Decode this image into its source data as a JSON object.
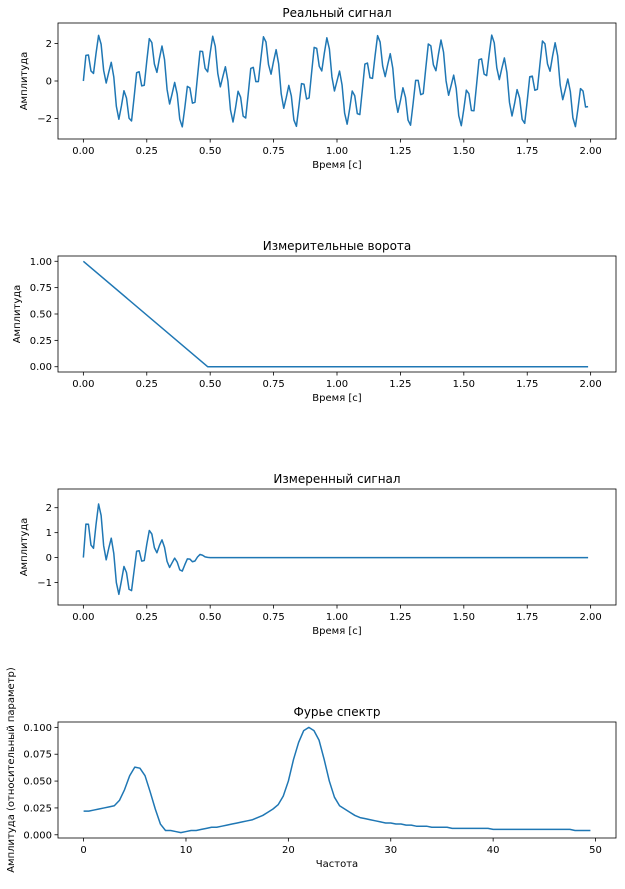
{
  "chart_data": [
    {
      "type": "line",
      "title": "Реальный сигнал",
      "xlabel": "Время [c]",
      "ylabel": "Амплитуда",
      "xlim": [
        -0.1,
        2.1
      ],
      "ylim": [
        -3.1,
        3.1
      ],
      "xticks": [
        0.0,
        0.25,
        0.5,
        0.75,
        1.0,
        1.25,
        1.5,
        1.75,
        2.0
      ],
      "xtick_labels": [
        "0.00",
        "0.25",
        "0.50",
        "0.75",
        "1.00",
        "1.25",
        "1.50",
        "1.75",
        "2.00"
      ],
      "yticks": [
        -2,
        0,
        2
      ],
      "ytick_labels": [
        "−2",
        "0",
        "2"
      ],
      "grid": false,
      "series": [
        {
          "signal_model": "sin(2*pi*20*t) + 1.5*sin(2*pi*4.5*t)",
          "t_start": 0.0,
          "t_step": 0.01,
          "count": 200,
          "envelope": "none"
        }
      ]
    },
    {
      "type": "line",
      "title": "Измерительные ворота",
      "xlabel": "Время [c]",
      "ylabel": "Амплитуда",
      "xlim": [
        -0.1,
        2.1
      ],
      "ylim": [
        -0.05,
        1.05
      ],
      "xticks": [
        0.0,
        0.25,
        0.5,
        0.75,
        1.0,
        1.25,
        1.5,
        1.75,
        2.0
      ],
      "xtick_labels": [
        "0.00",
        "0.25",
        "0.50",
        "0.75",
        "1.00",
        "1.25",
        "1.50",
        "1.75",
        "2.00"
      ],
      "yticks": [
        0.0,
        0.25,
        0.5,
        0.75,
        1.0
      ],
      "ytick_labels": [
        "0.00",
        "0.25",
        "0.50",
        "0.75",
        "1.00"
      ],
      "grid": false,
      "series": [
        {
          "x": [
            0.0,
            0.49,
            0.5,
            1.99
          ],
          "y": [
            1.0,
            0.0,
            0.0,
            0.0
          ]
        }
      ]
    },
    {
      "type": "line",
      "title": "Измеренный сигнал",
      "xlabel": "Время [c]",
      "ylabel": "Амплитуда",
      "xlim": [
        -0.1,
        2.1
      ],
      "ylim": [
        -1.9,
        2.75
      ],
      "xticks": [
        0.0,
        0.25,
        0.5,
        0.75,
        1.0,
        1.25,
        1.5,
        1.75,
        2.0
      ],
      "xtick_labels": [
        "0.00",
        "0.25",
        "0.50",
        "0.75",
        "1.00",
        "1.25",
        "1.50",
        "1.75",
        "2.00"
      ],
      "yticks": [
        -1,
        0,
        1,
        2
      ],
      "ytick_labels": [
        "−1",
        "0",
        "1",
        "2"
      ],
      "grid": false,
      "series": [
        {
          "signal_model": "(sin(2*pi*20*t) + 1.5*sin(2*pi*4.5*t)) * max(0, 1 - t/0.5)",
          "t_start": 0.0,
          "t_step": 0.01,
          "count": 200,
          "envelope": "linear-gate-0.5"
        }
      ]
    },
    {
      "type": "line",
      "title": "Фурье спектр",
      "xlabel": "Частота",
      "ylabel": "Амплитуда (относительный параметр)",
      "xlim": [
        -2.5,
        52.0
      ],
      "ylim": [
        -0.003,
        0.105
      ],
      "xticks": [
        0,
        10,
        20,
        30,
        40,
        50
      ],
      "xtick_labels": [
        "0",
        "10",
        "20",
        "30",
        "40",
        "50"
      ],
      "yticks": [
        0.0,
        0.025,
        0.05,
        0.075,
        0.1
      ],
      "ytick_labels": [
        "0.000",
        "0.025",
        "0.050",
        "0.075",
        "0.100"
      ],
      "grid": false,
      "series": [
        {
          "x": [
            0,
            0.5,
            1,
            1.5,
            2,
            2.5,
            3,
            3.5,
            4,
            4.5,
            5,
            5.5,
            6,
            6.5,
            7,
            7.5,
            8,
            8.5,
            9,
            9.5,
            10,
            10.5,
            11,
            11.5,
            12,
            12.5,
            13,
            13.5,
            14,
            14.5,
            15,
            15.5,
            16,
            16.5,
            17,
            17.5,
            18,
            18.5,
            19,
            19.5,
            20,
            20.5,
            21,
            21.5,
            22,
            22.5,
            23,
            23.5,
            24,
            24.5,
            25,
            25.5,
            26,
            26.5,
            27,
            27.5,
            28,
            28.5,
            29,
            29.5,
            30,
            30.5,
            31,
            31.5,
            32,
            32.5,
            33,
            33.5,
            34,
            34.5,
            35,
            35.5,
            36,
            36.5,
            37,
            37.5,
            38,
            38.5,
            39,
            39.5,
            40,
            40.5,
            41,
            41.5,
            42,
            42.5,
            43,
            43.5,
            44,
            44.5,
            45,
            45.5,
            46,
            46.5,
            47,
            47.5,
            48,
            48.5,
            49,
            49.5
          ],
          "y": [
            0.022,
            0.022,
            0.023,
            0.024,
            0.025,
            0.026,
            0.027,
            0.032,
            0.042,
            0.055,
            0.063,
            0.062,
            0.055,
            0.04,
            0.024,
            0.01,
            0.004,
            0.004,
            0.003,
            0.002,
            0.003,
            0.004,
            0.004,
            0.005,
            0.006,
            0.007,
            0.007,
            0.008,
            0.009,
            0.01,
            0.011,
            0.012,
            0.013,
            0.014,
            0.016,
            0.018,
            0.021,
            0.024,
            0.028,
            0.036,
            0.05,
            0.07,
            0.086,
            0.097,
            0.1,
            0.097,
            0.088,
            0.07,
            0.05,
            0.035,
            0.027,
            0.024,
            0.021,
            0.018,
            0.016,
            0.015,
            0.014,
            0.013,
            0.012,
            0.011,
            0.011,
            0.01,
            0.01,
            0.009,
            0.009,
            0.008,
            0.008,
            0.008,
            0.007,
            0.007,
            0.007,
            0.007,
            0.006,
            0.006,
            0.006,
            0.006,
            0.006,
            0.006,
            0.006,
            0.006,
            0.005,
            0.005,
            0.005,
            0.005,
            0.005,
            0.005,
            0.005,
            0.005,
            0.005,
            0.005,
            0.005,
            0.005,
            0.005,
            0.005,
            0.005,
            0.005,
            0.004,
            0.004,
            0.004,
            0.004
          ]
        }
      ]
    }
  ]
}
